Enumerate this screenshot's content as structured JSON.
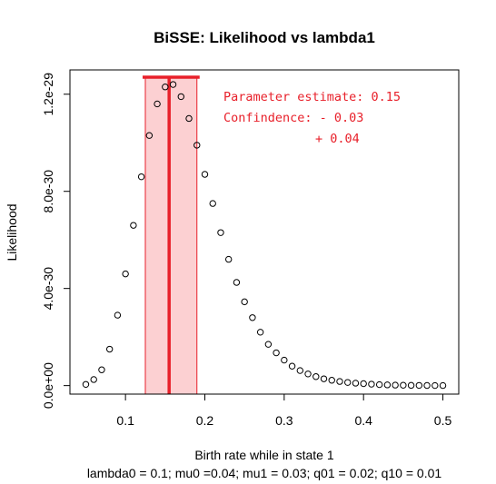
{
  "chart_data": {
    "type": "scatter",
    "title": "BiSSE: Likelihood vs lambda1",
    "xlabel": "Birth rate while in state 1",
    "sublabel": "lambda0 = 0.1; mu0 =0.04; mu1 = 0.03; q01 = 0.02; q10 = 0.01",
    "ylabel": "Likelihood",
    "xlim": [
      0.03,
      0.52
    ],
    "ylim": [
      -3.5e-31,
      1.3e-29
    ],
    "x_ticks": [
      0.1,
      0.2,
      0.3,
      0.4,
      0.5
    ],
    "x_tick_labels": [
      "0.1",
      "0.2",
      "0.3",
      "0.4",
      "0.5"
    ],
    "y_ticks": [
      0,
      4e-30,
      8e-30,
      1.2e-29
    ],
    "y_tick_labels": [
      "0.0e+00",
      "4.0e-30",
      "8.0e-30",
      "1.2e-29"
    ],
    "grid": false,
    "x": [
      0.05,
      0.06,
      0.07,
      0.08,
      0.09,
      0.1,
      0.11,
      0.12,
      0.13,
      0.14,
      0.15,
      0.16,
      0.17,
      0.18,
      0.19,
      0.2,
      0.21,
      0.22,
      0.23,
      0.24,
      0.25,
      0.26,
      0.27,
      0.28,
      0.29,
      0.3,
      0.31,
      0.32,
      0.33,
      0.34,
      0.35,
      0.36,
      0.37,
      0.38,
      0.39,
      0.4,
      0.41,
      0.42,
      0.43,
      0.44,
      0.45,
      0.46,
      0.47,
      0.48,
      0.49,
      0.5
    ],
    "y": [
      5e-32,
      2.5e-31,
      6.5e-31,
      1.5e-30,
      2.9e-30,
      4.6e-30,
      6.6e-30,
      8.6e-30,
      1.03e-29,
      1.16e-29,
      1.23e-29,
      1.24e-29,
      1.19e-29,
      1.1e-29,
      9.9e-30,
      8.7e-30,
      7.5e-30,
      6.3e-30,
      5.2e-30,
      4.25e-30,
      3.45e-30,
      2.8e-30,
      2.2e-30,
      1.7e-30,
      1.35e-30,
      1.05e-30,
      8e-31,
      6.2e-31,
      4.8e-31,
      3.7e-31,
      2.8e-31,
      2.2e-31,
      1.7e-31,
      1.3e-31,
      1e-31,
      8e-32,
      6e-32,
      4e-32,
      3e-32,
      2e-32,
      1.5e-32,
      1e-32,
      8e-33,
      5e-33,
      3e-33,
      2e-33
    ],
    "estimate": 0.155,
    "ci": [
      0.125,
      0.19
    ],
    "colors": {
      "highlight": "#e8202a",
      "band_fill": "#fcd0d2",
      "points": "#000000"
    },
    "annotations": {
      "line1": "Parameter estimate: 0.15",
      "line2": "Confindence: - 0.03",
      "line3": "+ 0.04"
    }
  }
}
